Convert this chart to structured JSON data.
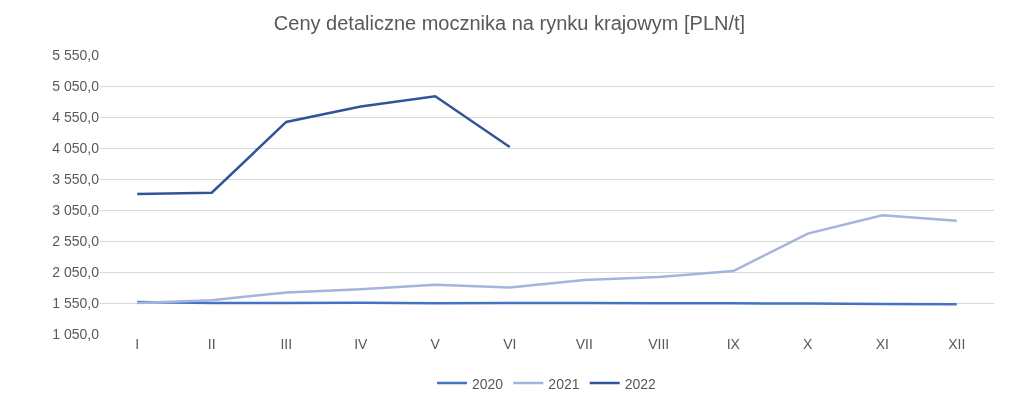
{
  "chart_data": {
    "type": "line",
    "title": "Ceny detaliczne mocznika na rynku krajowym [PLN/t]",
    "categories": [
      "I",
      "II",
      "III",
      "IV",
      "V",
      "VI",
      "VII",
      "VIII",
      "IX",
      "X",
      "XI",
      "XII"
    ],
    "series": [
      {
        "name": "2020",
        "color": "#4472c4",
        "values": [
          1565,
          1550,
          1550,
          1555,
          1545,
          1550,
          1550,
          1545,
          1545,
          1540,
          1535,
          1530
        ]
      },
      {
        "name": "2021",
        "color": "#a5b4dc",
        "values": [
          1550,
          1595,
          1720,
          1770,
          1845,
          1800,
          1920,
          1970,
          2065,
          2670,
          2965,
          2875
        ]
      },
      {
        "name": "2022",
        "color": "#2f5597",
        "values": [
          3310,
          3330,
          4470,
          4720,
          4885,
          4065,
          null,
          null,
          null,
          null,
          null,
          null
        ]
      }
    ],
    "ylim": [
      1050,
      5550
    ],
    "yticks": [
      {
        "value": 1050,
        "label": "1 050,0"
      },
      {
        "value": 1550,
        "label": "1 550,0"
      },
      {
        "value": 2050,
        "label": "2 050,0"
      },
      {
        "value": 2550,
        "label": "2 550,0"
      },
      {
        "value": 3050,
        "label": "3 050,0"
      },
      {
        "value": 3550,
        "label": "3 550,0"
      },
      {
        "value": 4050,
        "label": "4 050,0"
      },
      {
        "value": 4550,
        "label": "4 550,0"
      },
      {
        "value": 5050,
        "label": "5 050,0"
      },
      {
        "value": 5550,
        "label": "5 550,0"
      }
    ],
    "grid": "y",
    "legend": "bottom",
    "marker": "none",
    "line_style": "solid"
  }
}
